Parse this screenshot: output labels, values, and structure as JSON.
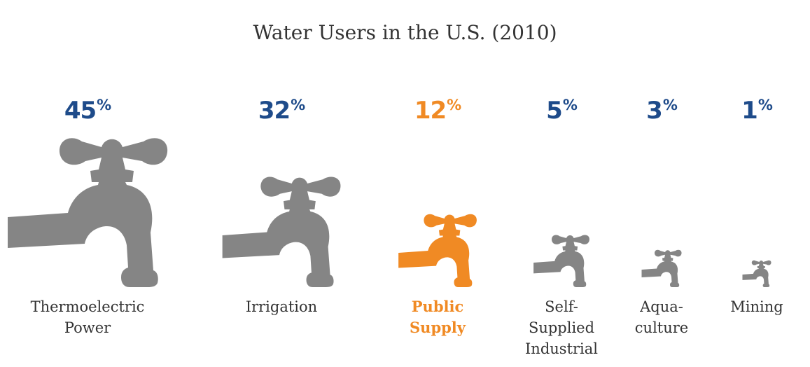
{
  "chart_data": {
    "type": "bar",
    "title": "Water Users in the U.S. (2010)",
    "unit": "%",
    "categories": [
      "Thermoelectric\nPower",
      "Irrigation",
      "Public\nSupply",
      "Self-\nSupplied\nIndustrial",
      "Aqua-\nculture",
      "Mining"
    ],
    "values": [
      45,
      32,
      12,
      5,
      3,
      1
    ],
    "highlight_index": 2,
    "colors": {
      "value_default": "#1e4b8a",
      "highlight": "#f08a24",
      "faucet_default": "#858585",
      "label_default": "#333333"
    }
  }
}
